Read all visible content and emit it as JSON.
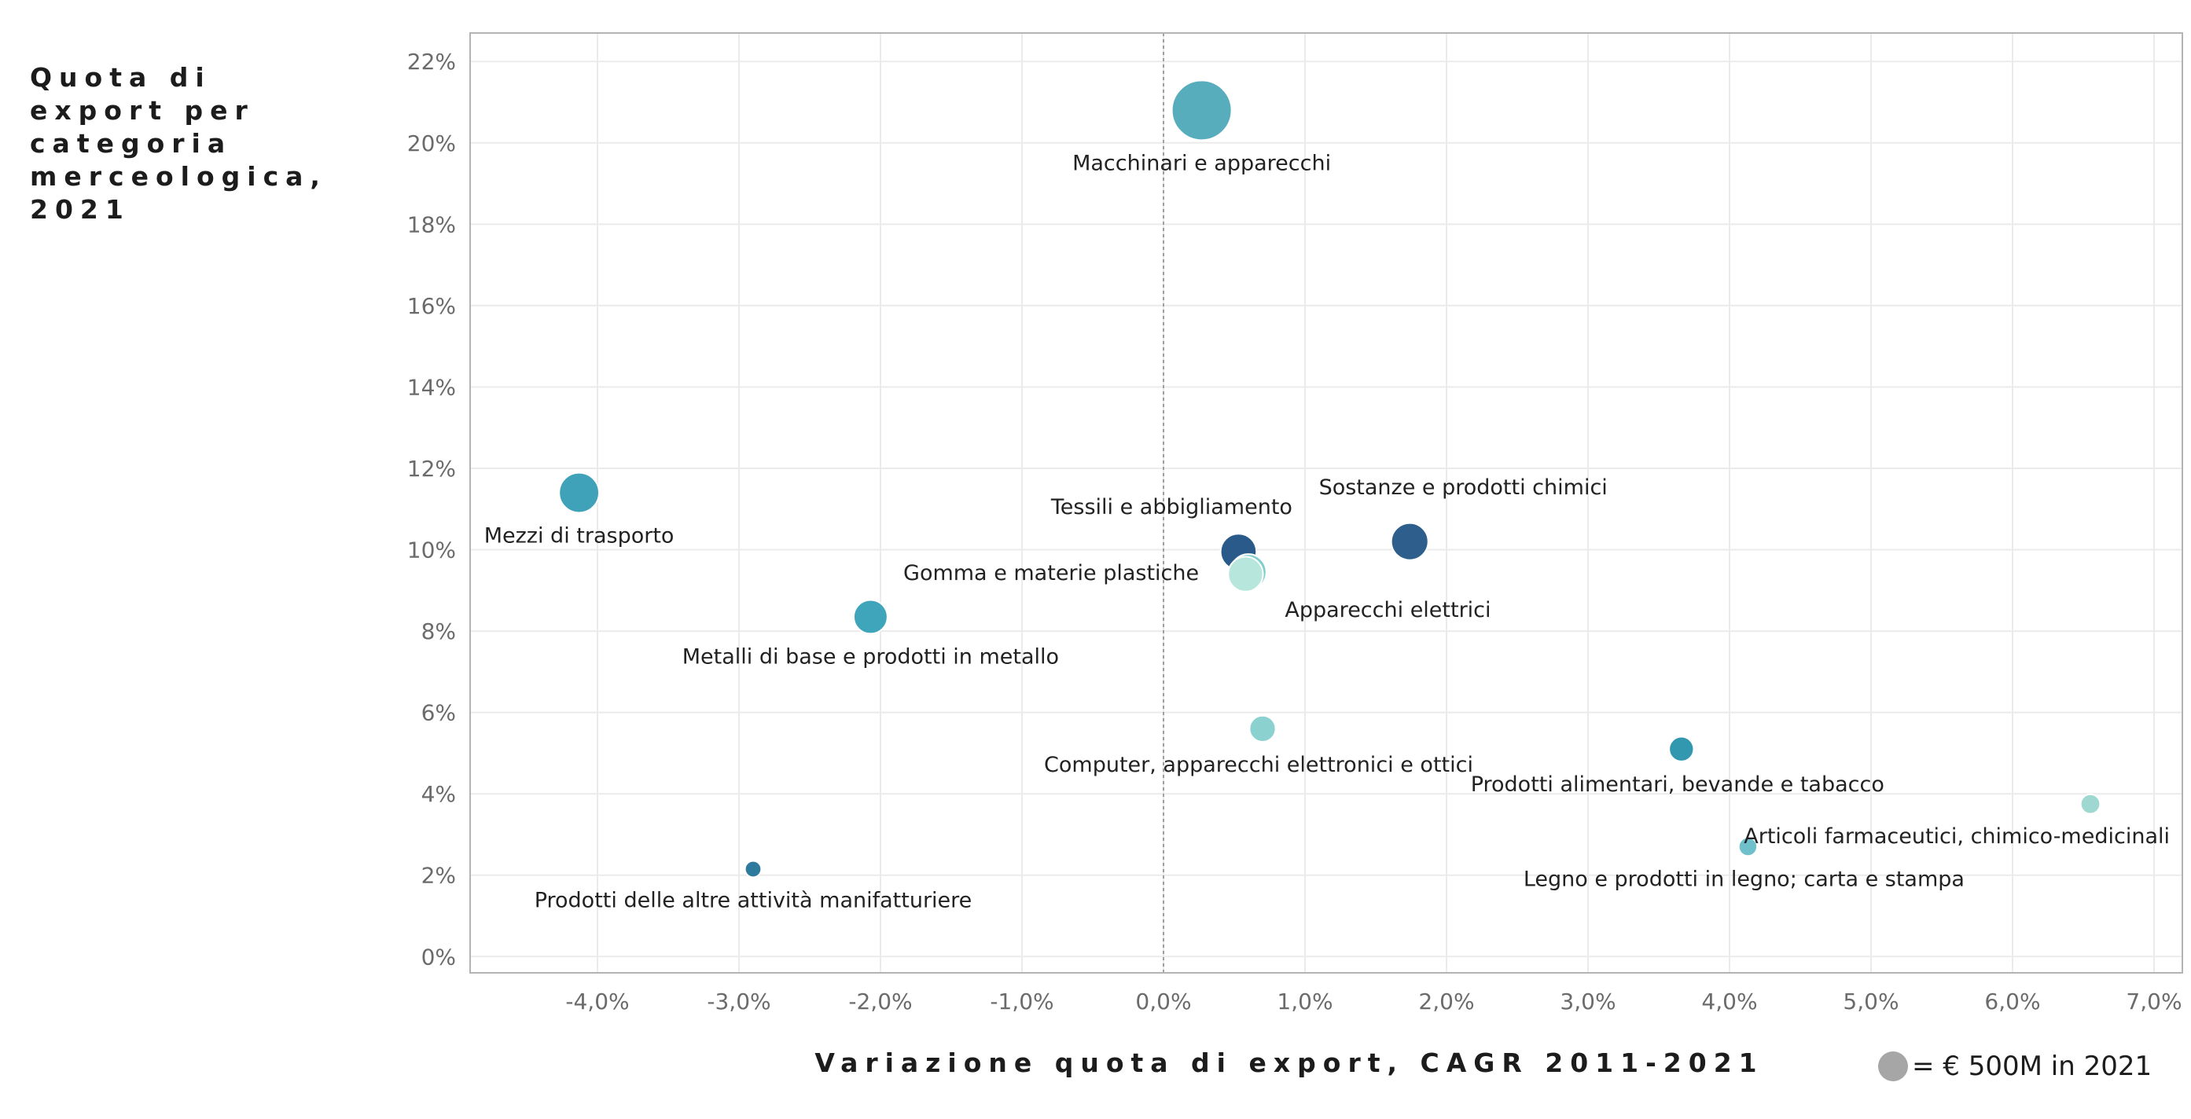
{
  "chart_data": {
    "type": "scatter",
    "title": "Quota di export per categoria merceologica, 2021",
    "xlabel": "Variazione quota di export, CAGR 2011-2021",
    "ylabel": "",
    "xlim": [
      -4.9,
      7.2
    ],
    "ylim": [
      -0.4,
      22.7
    ],
    "xticks": [
      -4,
      -3,
      -2,
      -1,
      0,
      1,
      2,
      3,
      4,
      5,
      6,
      7
    ],
    "yticks": [
      0,
      2,
      4,
      6,
      8,
      10,
      12,
      14,
      16,
      18,
      20,
      22
    ],
    "xtick_labels": [
      "-4,0%",
      "-3,0%",
      "-2,0%",
      "-1,0%",
      "0,0%",
      "1,0%",
      "2,0%",
      "3,0%",
      "4,0%",
      "5,0%",
      "6,0%",
      "7,0%"
    ],
    "ytick_labels": [
      "0%",
      "2%",
      "4%",
      "6%",
      "8%",
      "10%",
      "12%",
      "14%",
      "16%",
      "18%",
      "20%",
      "22%"
    ],
    "grid": true,
    "legend": {
      "label": "= € 500M in 2021",
      "placement": "bottom-right",
      "color": "#a6a6a6"
    },
    "points": [
      {
        "name": "Macchinari e apparecchi",
        "x": 0.27,
        "y": 20.8,
        "size_eur_m": 4700,
        "color": "#58adbd",
        "label_pos": "below"
      },
      {
        "name": "Mezzi di trasporto",
        "x": -4.13,
        "y": 11.4,
        "size_eur_m": 2100,
        "color": "#3fa2b9",
        "label_pos": "below"
      },
      {
        "name": "Tessili e abbigliamento",
        "x": 0.53,
        "y": 9.95,
        "size_eur_m": 1700,
        "color": "#2a5a89",
        "label_pos": "above"
      },
      {
        "name": "Sostanze e prodotti chimici",
        "x": 1.74,
        "y": 10.2,
        "size_eur_m": 1800,
        "color": "#2e5f8c",
        "label_pos": "above"
      },
      {
        "name": "Gomma e materie plastiche",
        "x": 0.6,
        "y": 9.45,
        "size_eur_m": 1700,
        "color": "#7fcfcd",
        "label_pos": "left"
      },
      {
        "name": "Apparecchi elettrici",
        "x": 0.58,
        "y": 9.4,
        "size_eur_m": 1600,
        "color": "#b7e6dc",
        "label_pos": "below-right"
      },
      {
        "name": "Metalli di base e prodotti in metallo",
        "x": -2.07,
        "y": 8.35,
        "size_eur_m": 1500,
        "color": "#3fa5bb",
        "label_pos": "below"
      },
      {
        "name": "Computer, apparecchi elettronici e ottici",
        "x": 0.7,
        "y": 5.6,
        "size_eur_m": 900,
        "color": "#8ad1d0",
        "label_pos": "below"
      },
      {
        "name": "Prodotti alimentari, bevande e tabacco",
        "x": 3.66,
        "y": 5.1,
        "size_eur_m": 800,
        "color": "#3298b0",
        "label_pos": "below"
      },
      {
        "name": "Articoli farmaceutici, chimico-medicinali",
        "x": 6.55,
        "y": 3.75,
        "size_eur_m": 500,
        "color": "#9fd8d0",
        "label_pos": "below-left"
      },
      {
        "name": "Legno e prodotti in legno; carta e stampa",
        "x": 4.13,
        "y": 2.7,
        "size_eur_m": 450,
        "color": "#6fc0cb",
        "label_pos": "below"
      },
      {
        "name": "Prodotti delle altre attività manifatturiere",
        "x": -2.9,
        "y": 2.15,
        "size_eur_m": 350,
        "color": "#2d7a9c",
        "label_pos": "below"
      }
    ]
  }
}
